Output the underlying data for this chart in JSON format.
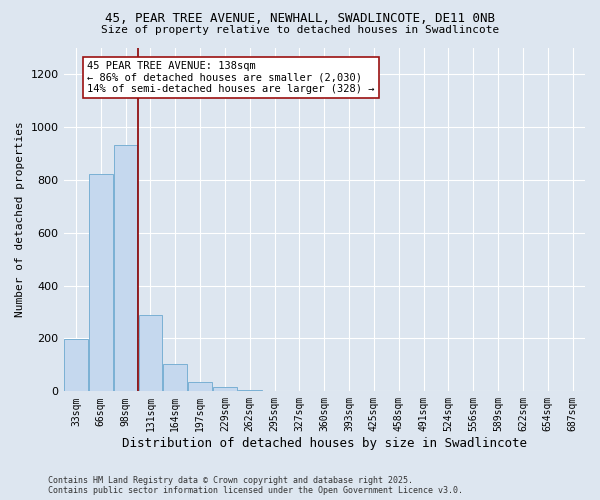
{
  "title_line1": "45, PEAR TREE AVENUE, NEWHALL, SWADLINCOTE, DE11 0NB",
  "title_line2": "Size of property relative to detached houses in Swadlincote",
  "xlabel": "Distribution of detached houses by size in Swadlincote",
  "ylabel": "Number of detached properties",
  "categories": [
    "33sqm",
    "66sqm",
    "98sqm",
    "131sqm",
    "164sqm",
    "197sqm",
    "229sqm",
    "262sqm",
    "295sqm",
    "327sqm",
    "360sqm",
    "393sqm",
    "425sqm",
    "458sqm",
    "491sqm",
    "524sqm",
    "556sqm",
    "589sqm",
    "622sqm",
    "654sqm",
    "687sqm"
  ],
  "values": [
    196,
    820,
    930,
    290,
    105,
    35,
    15,
    5,
    2,
    0,
    0,
    0,
    0,
    0,
    0,
    0,
    0,
    0,
    0,
    0,
    0
  ],
  "bar_color": "#c5d8ee",
  "bar_edge_color": "#7ab0d4",
  "red_line_color": "#8b0000",
  "annotation_text": "45 PEAR TREE AVENUE: 138sqm\n← 86% of detached houses are smaller (2,030)\n14% of semi-detached houses are larger (328) →",
  "annotation_box_color": "#ffffff",
  "annotation_edge_color": "#9b1111",
  "ylim": [
    0,
    1300
  ],
  "yticks": [
    0,
    200,
    400,
    600,
    800,
    1000,
    1200
  ],
  "background_color": "#dde6f0",
  "grid_color": "#ffffff",
  "footer_line1": "Contains HM Land Registry data © Crown copyright and database right 2025.",
  "footer_line2": "Contains public sector information licensed under the Open Government Licence v3.0.",
  "red_line_index": 2.5
}
